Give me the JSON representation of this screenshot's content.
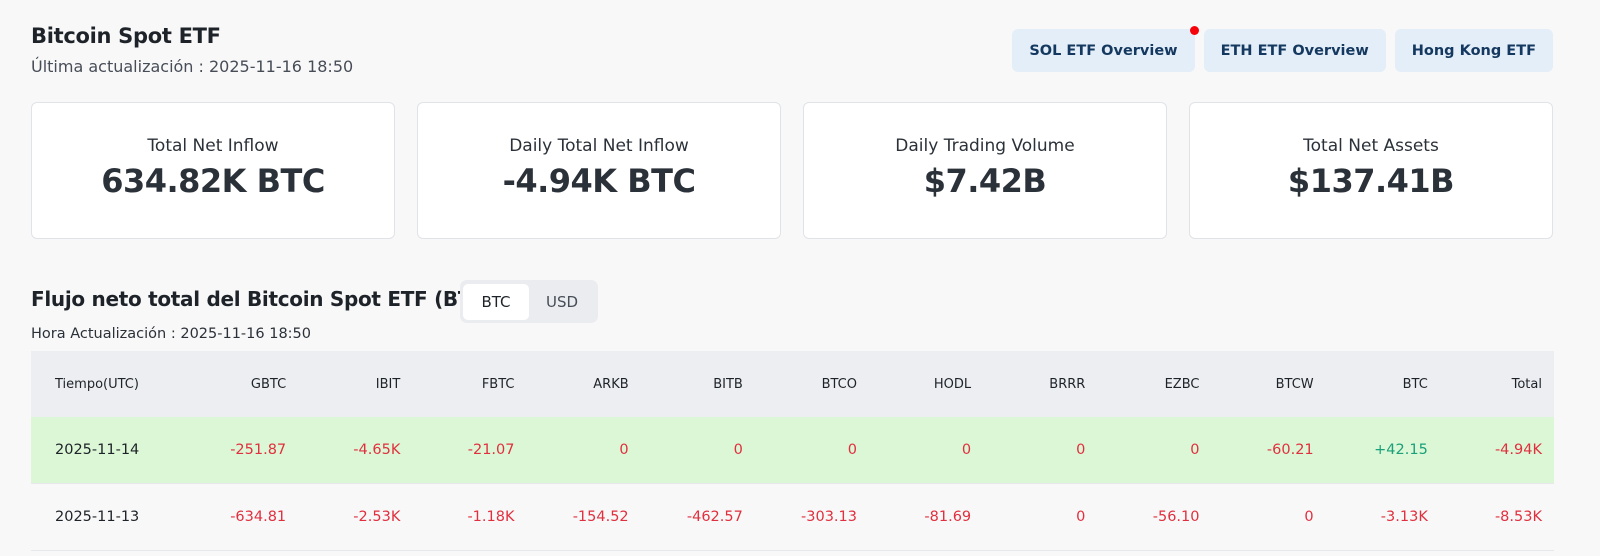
{
  "header": {
    "title": "Bitcoin Spot ETF",
    "last_update": "Última actualización : 2025-11-16 18:50"
  },
  "nav_buttons": [
    {
      "label": "SOL ETF Overview",
      "has_notification": true
    },
    {
      "label": "ETH ETF Overview",
      "has_notification": false
    },
    {
      "label": "Hong Kong ETF",
      "has_notification": false
    }
  ],
  "cards": [
    {
      "label": "Total Net Inflow",
      "value": "634.82K BTC"
    },
    {
      "label": "Daily Total Net Inflow",
      "value": "-4.94K BTC"
    },
    {
      "label": "Daily Trading Volume",
      "value": "$7.42B"
    },
    {
      "label": "Total Net Assets",
      "value": "$137.41B"
    }
  ],
  "section": {
    "title": "Flujo neto total del Bitcoin Spot ETF (BTC)",
    "toggle": {
      "options": [
        "BTC",
        "USD"
      ],
      "selected": "BTC"
    },
    "update_time": "Hora Actualización : 2025-11-16 18:50"
  },
  "table": {
    "columns": [
      "Tiempo(UTC)",
      "GBTC",
      "IBIT",
      "FBTC",
      "ARKB",
      "BITB",
      "BTCO",
      "HODL",
      "BRRR",
      "EZBC",
      "BTCW",
      "BTC",
      "Total"
    ],
    "rows": [
      {
        "highlight": true,
        "cells": [
          "2025-11-14",
          "-251.87",
          "-4.65K",
          "-21.07",
          "0",
          "0",
          "0",
          "0",
          "0",
          "0",
          "-60.21",
          "+42.15",
          "-4.94K"
        ]
      },
      {
        "highlight": false,
        "cells": [
          "2025-11-13",
          "-634.81",
          "-2.53K",
          "-1.18K",
          "-154.52",
          "-462.57",
          "-303.13",
          "-81.69",
          "0",
          "-56.10",
          "0",
          "-3.13K",
          "-8.53K"
        ]
      }
    ]
  },
  "colors": {
    "negative": "#e0303f",
    "positive": "#1aa07a",
    "highlight_row": "#dbf7d5",
    "nav_button_bg": "#e3eef9",
    "notification_dot": "#f6020a"
  }
}
